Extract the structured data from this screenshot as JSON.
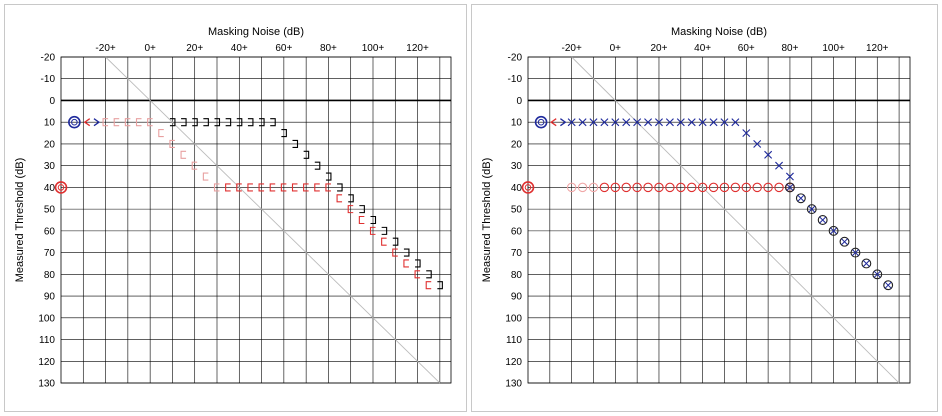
{
  "colors": {
    "grid": "#000000",
    "diagonal": "#bcbcbc",
    "blue": "#1f2a9c",
    "red": "#e03030",
    "pink": "#e8a0a0",
    "dark": "#000000"
  },
  "chart_data": [
    {
      "type": "scatter",
      "title": "",
      "xlabel": "Masking Noise (dB)",
      "ylabel": "Measured Threshold (dB)",
      "xticks": [
        "-20+",
        "0+",
        "20+",
        "40+",
        "60+",
        "80+",
        "100+",
        "120+"
      ],
      "yticks": [
        "-20",
        "-10",
        "0",
        "10",
        "20",
        "30",
        "40",
        "50",
        "60",
        "70",
        "80",
        "90",
        "100",
        "110",
        "120",
        "130"
      ],
      "xlim": [
        -40,
        135
      ],
      "ylim": [
        -20,
        130
      ],
      "diagonal": [
        [
          -20,
          -20
        ],
        [
          130,
          130
        ]
      ],
      "unmasked": [
        {
          "name": "",
          "symbol": "O",
          "color": "#1f2a9c",
          "x": -34,
          "y": 10
        },
        {
          "name": "",
          "symbol": "O",
          "color": "#e03030",
          "x": -40,
          "y": 40
        }
      ],
      "arrows": [
        {
          "symbol": "<",
          "color": "#e03030",
          "x": -28,
          "y": 10
        },
        {
          "symbol": ">",
          "color": "#1f2a9c",
          "x": -27,
          "y": 10
        }
      ],
      "series": [
        {
          "name": "",
          "symbol": "]",
          "color": "#000000",
          "x": [
            10,
            15,
            20,
            25,
            30,
            35,
            40,
            45,
            50,
            55,
            60,
            65,
            70,
            75,
            80,
            85,
            90,
            95,
            100,
            105,
            110,
            115,
            120,
            125,
            130
          ],
          "y": [
            10,
            10,
            10,
            10,
            10,
            10,
            10,
            10,
            10,
            10,
            15,
            20,
            25,
            30,
            35,
            40,
            45,
            50,
            55,
            60,
            65,
            70,
            75,
            80,
            85
          ]
        },
        {
          "name": "",
          "symbol": "[",
          "color": "#e8a0a0",
          "x": [
            -20,
            -15,
            -10,
            -5,
            0,
            5,
            10,
            15,
            20,
            25,
            30
          ],
          "y": [
            10,
            10,
            10,
            10,
            10,
            15,
            20,
            25,
            30,
            35,
            40
          ]
        },
        {
          "name": "",
          "symbol": "[",
          "color": "#e03030",
          "x": [
            35,
            40,
            45,
            50,
            55,
            60,
            65,
            70,
            75,
            80,
            85,
            90,
            95,
            100,
            105,
            110,
            115,
            120,
            125
          ],
          "y": [
            40,
            40,
            40,
            40,
            40,
            40,
            40,
            40,
            40,
            40,
            45,
            50,
            55,
            60,
            65,
            70,
            75,
            80,
            85
          ]
        }
      ]
    },
    {
      "type": "scatter",
      "title": "",
      "xlabel": "Masking Noise (dB)",
      "ylabel": "Measured Threshold (dB)",
      "xticks": [
        "-20+",
        "0+",
        "20+",
        "40+",
        "60+",
        "80+",
        "100+",
        "120+"
      ],
      "yticks": [
        "-20",
        "-10",
        "0",
        "10",
        "20",
        "30",
        "40",
        "50",
        "60",
        "70",
        "80",
        "90",
        "100",
        "110",
        "120",
        "130"
      ],
      "xlim": [
        -40,
        135
      ],
      "ylim": [
        -20,
        130
      ],
      "diagonal": [
        [
          -20,
          -20
        ],
        [
          130,
          130
        ]
      ],
      "unmasked": [
        {
          "name": "",
          "symbol": "O",
          "color": "#1f2a9c",
          "x": -34,
          "y": 10
        },
        {
          "name": "",
          "symbol": "O",
          "color": "#e03030",
          "x": -40,
          "y": 40
        }
      ],
      "arrows": [
        {
          "symbol": "<",
          "color": "#e03030",
          "x": -28,
          "y": 10
        },
        {
          "symbol": ">",
          "color": "#1f2a9c",
          "x": -27,
          "y": 10
        }
      ],
      "series": [
        {
          "name": "",
          "symbol": "O",
          "color": "#f0a8a8",
          "x": [
            -20,
            -15,
            -10
          ],
          "y": [
            40,
            40,
            40
          ]
        },
        {
          "name": "",
          "symbol": "O",
          "color": "#e03030",
          "x": [
            -5,
            0,
            5,
            10,
            15,
            20,
            25,
            30,
            35,
            40,
            45,
            50,
            55,
            60,
            65,
            70,
            75,
            80
          ],
          "y": [
            40,
            40,
            40,
            40,
            40,
            40,
            40,
            40,
            40,
            40,
            40,
            40,
            40,
            40,
            40,
            40,
            40,
            40
          ]
        },
        {
          "name": "",
          "symbol": "X",
          "color": "#1f2a9c",
          "x": [
            -20,
            -15,
            -10,
            -5,
            0,
            5,
            10,
            15,
            20,
            25,
            30,
            35,
            40,
            45,
            50,
            55,
            60,
            65,
            70,
            75,
            80
          ],
          "y": [
            10,
            10,
            10,
            10,
            10,
            10,
            10,
            10,
            10,
            10,
            10,
            10,
            10,
            10,
            10,
            10,
            15,
            20,
            25,
            30,
            35
          ]
        },
        {
          "name": "",
          "symbol": "OX",
          "color": "#1f2a9c",
          "x": [
            80,
            85,
            90,
            95,
            100,
            105,
            110,
            115,
            120,
            125
          ],
          "y": [
            40,
            45,
            50,
            55,
            60,
            65,
            70,
            75,
            80,
            85
          ]
        }
      ]
    }
  ]
}
